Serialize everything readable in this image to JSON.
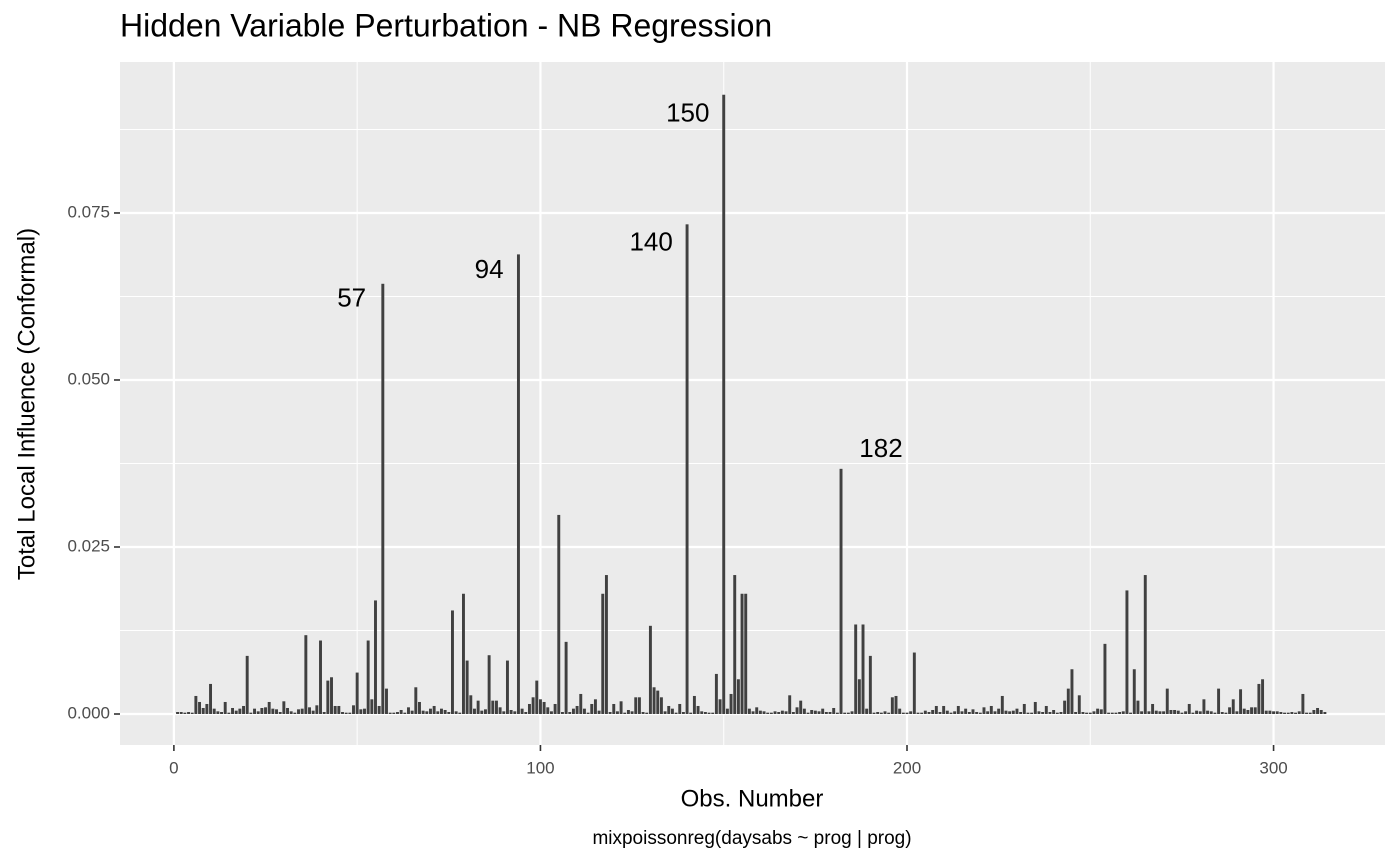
{
  "chart_data": {
    "type": "bar",
    "title": "Hidden Variable Perturbation - NB Regression",
    "xlabel": "Obs. Number",
    "ylabel": "Total Local Influence (Conformal)",
    "caption": "mixpoissonreg(daysabs ~ prog | prog)",
    "color": "#404040",
    "grid": true,
    "xlim": [
      -14.7,
      330.4
    ],
    "ylim": [
      -0.00464,
      0.0976
    ],
    "xticks": [
      0,
      100,
      200,
      300
    ],
    "x_minor_ticks": [
      50,
      150,
      250
    ],
    "yticks": [
      {
        "value": 0,
        "label": "0.000"
      },
      {
        "value": 0.025,
        "label": "0.025"
      },
      {
        "value": 0.05,
        "label": "0.050"
      },
      {
        "value": 0.075,
        "label": "0.075"
      }
    ],
    "y_minor_ticks": [
      0.0125,
      0.0375,
      0.0625,
      0.0875
    ],
    "annotations": [
      {
        "text": "57",
        "x": 48.5,
        "y": 0.062
      },
      {
        "text": "94",
        "x": 86,
        "y": 0.0663
      },
      {
        "text": "140",
        "x": 130.2,
        "y": 0.0704
      },
      {
        "text": "150",
        "x": 140.2,
        "y": 0.0897
      },
      {
        "text": "182",
        "x": 192.9,
        "y": 0.0395
      }
    ],
    "x": [
      1,
      2,
      3,
      4,
      5,
      6,
      7,
      8,
      9,
      10,
      11,
      12,
      13,
      14,
      15,
      16,
      17,
      18,
      19,
      20,
      21,
      22,
      23,
      24,
      25,
      26,
      27,
      28,
      29,
      30,
      31,
      32,
      33,
      34,
      35,
      36,
      37,
      38,
      39,
      40,
      41,
      42,
      43,
      44,
      45,
      46,
      47,
      48,
      49,
      50,
      51,
      52,
      53,
      54,
      55,
      56,
      57,
      58,
      59,
      60,
      61,
      62,
      63,
      64,
      65,
      66,
      67,
      68,
      69,
      70,
      71,
      72,
      73,
      74,
      75,
      76,
      77,
      78,
      79,
      80,
      81,
      82,
      83,
      84,
      85,
      86,
      87,
      88,
      89,
      90,
      91,
      92,
      93,
      94,
      95,
      96,
      97,
      98,
      99,
      100,
      101,
      102,
      103,
      104,
      105,
      106,
      107,
      108,
      109,
      110,
      111,
      112,
      113,
      114,
      115,
      116,
      117,
      118,
      119,
      120,
      121,
      122,
      123,
      124,
      125,
      126,
      127,
      128,
      129,
      130,
      131,
      132,
      133,
      134,
      135,
      136,
      137,
      138,
      139,
      140,
      141,
      142,
      143,
      144,
      145,
      146,
      147,
      148,
      149,
      150,
      151,
      152,
      153,
      154,
      155,
      156,
      157,
      158,
      159,
      160,
      161,
      162,
      163,
      164,
      165,
      166,
      167,
      168,
      169,
      170,
      171,
      172,
      173,
      174,
      175,
      176,
      177,
      178,
      179,
      180,
      181,
      182,
      183,
      184,
      185,
      186,
      187,
      188,
      189,
      190,
      191,
      192,
      193,
      194,
      195,
      196,
      197,
      198,
      199,
      200,
      201,
      202,
      203,
      204,
      205,
      206,
      207,
      208,
      209,
      210,
      211,
      212,
      213,
      214,
      215,
      216,
      217,
      218,
      219,
      220,
      221,
      222,
      223,
      224,
      225,
      226,
      227,
      228,
      229,
      230,
      231,
      232,
      233,
      234,
      235,
      236,
      237,
      238,
      239,
      240,
      241,
      242,
      243,
      244,
      245,
      246,
      247,
      248,
      249,
      250,
      251,
      252,
      253,
      254,
      255,
      256,
      257,
      258,
      259,
      260,
      261,
      262,
      263,
      264,
      265,
      266,
      267,
      268,
      269,
      270,
      271,
      272,
      273,
      274,
      275,
      276,
      277,
      278,
      279,
      280,
      281,
      282,
      283,
      284,
      285,
      286,
      287,
      288,
      289,
      290,
      291,
      292,
      293,
      294,
      295,
      296,
      297,
      298,
      299,
      300,
      301,
      302,
      303,
      304,
      305,
      306,
      307,
      308,
      309,
      310,
      311,
      312,
      313,
      314
    ],
    "values": [
      0.0003,
      0.0003,
      0.0002,
      0.0003,
      0.0002,
      0.0027,
      0.0018,
      0.0009,
      0.0015,
      0.0045,
      0.0008,
      0.0004,
      0.0003,
      0.0018,
      0.0002,
      0.0009,
      0.0005,
      0.0008,
      0.0012,
      0.0087,
      0.0002,
      0.0008,
      0.0004,
      0.0009,
      0.001,
      0.0018,
      0.0008,
      0.0007,
      0.0003,
      0.0019,
      0.0009,
      0.0004,
      0.0002,
      0.0007,
      0.0008,
      0.0118,
      0.001,
      0.0005,
      0.0013,
      0.011,
      0.0003,
      0.005,
      0.0055,
      0.0012,
      0.0012,
      0.0003,
      0.0002,
      0.0002,
      0.0013,
      0.0062,
      0.0007,
      0.0008,
      0.011,
      0.0022,
      0.017,
      0.0012,
      0.0644,
      0.0038,
      0.0002,
      0.0002,
      0.0003,
      0.0006,
      0.0002,
      0.001,
      0.0005,
      0.004,
      0.0018,
      0.0005,
      0.0004,
      0.0008,
      0.0012,
      0.0004,
      0.0008,
      0.0006,
      0.0003,
      0.0155,
      0.0004,
      0.0002,
      0.018,
      0.008,
      0.0028,
      0.0008,
      0.002,
      0.0005,
      0.0007,
      0.0088,
      0.002,
      0.002,
      0.001,
      0.0004,
      0.008,
      0.0006,
      0.0004,
      0.0688,
      0.0008,
      0.0003,
      0.0015,
      0.0025,
      0.005,
      0.0022,
      0.0018,
      0.001,
      0.0004,
      0.0015,
      0.0298,
      0.0003,
      0.0108,
      0.0003,
      0.0008,
      0.0012,
      0.003,
      0.0008,
      0.0002,
      0.0015,
      0.0022,
      0.0005,
      0.018,
      0.0208,
      0.0003,
      0.0015,
      0.0004,
      0.0019,
      0.0002,
      0.0006,
      0.0004,
      0.0025,
      0.0025,
      0.0003,
      0.0002,
      0.0132,
      0.004,
      0.0035,
      0.0025,
      0.0004,
      0.0012,
      0.0008,
      0.0002,
      0.0015,
      0.0003,
      0.0733,
      0.0002,
      0.0027,
      0.0012,
      0.0004,
      0.0003,
      0.0002,
      0.0002,
      0.006,
      0.0022,
      0.0927,
      0.0008,
      0.003,
      0.0208,
      0.0052,
      0.018,
      0.018,
      0.0008,
      0.0004,
      0.001,
      0.0005,
      0.0004,
      0.0002,
      0.0002,
      0.0004,
      0.0003,
      0.0005,
      0.0004,
      0.0028,
      0.0003,
      0.001,
      0.002,
      0.0008,
      0.0002,
      0.0006,
      0.0005,
      0.0004,
      0.0008,
      0.0003,
      0.0003,
      0.0009,
      0.0002,
      0.0367,
      0.0002,
      0.0002,
      0.0004,
      0.0134,
      0.0052,
      0.0134,
      0.0008,
      0.0087,
      0.0002,
      0.0003,
      0.0002,
      0.0004,
      0.0002,
      0.0025,
      0.0027,
      0.0008,
      0.0002,
      0.0002,
      0.0004,
      0.0092,
      0.0002,
      0.0002,
      0.0005,
      0.0003,
      0.0006,
      0.0012,
      0.0003,
      0.0012,
      0.0005,
      0.0002,
      0.0004,
      0.0012,
      0.0004,
      0.0008,
      0.0003,
      0.0007,
      0.0003,
      0.0002,
      0.001,
      0.0004,
      0.0012,
      0.0004,
      0.0008,
      0.0027,
      0.0005,
      0.0004,
      0.0005,
      0.0008,
      0.0003,
      0.0015,
      0.0002,
      0.0002,
      0.0018,
      0.0004,
      0.0003,
      0.0012,
      0.0003,
      0.0006,
      0.0002,
      0.0003,
      0.002,
      0.0038,
      0.0067,
      0.0003,
      0.0028,
      0.0003,
      0.0002,
      0.0002,
      0.0004,
      0.0008,
      0.0007,
      0.0105,
      0.0002,
      0.0002,
      0.0002,
      0.0003,
      0.0004,
      0.0185,
      0.0002,
      0.0067,
      0.002,
      0.0004,
      0.0208,
      0.0004,
      0.0015,
      0.0005,
      0.0004,
      0.0004,
      0.0038,
      0.0006,
      0.0006,
      0.0005,
      0.0002,
      0.0004,
      0.0015,
      0.0002,
      0.0005,
      0.0004,
      0.0022,
      0.0005,
      0.0004,
      0.0002,
      0.0038,
      0.0003,
      0.0002,
      0.001,
      0.0022,
      0.0004,
      0.0037,
      0.0008,
      0.0006,
      0.001,
      0.001,
      0.0045,
      0.0052,
      0.0005,
      0.0005,
      0.0004,
      0.0004,
      0.0003,
      0.0002,
      0.0002,
      0.0003,
      0.0002,
      0.0004,
      0.003,
      0.0002,
      0.0002,
      0.0006,
      0.0009,
      0.0006,
      0.0003
    ]
  }
}
